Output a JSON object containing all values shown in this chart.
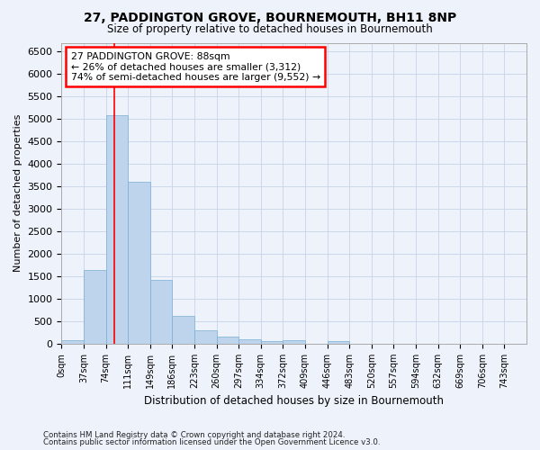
{
  "title_line1": "27, PADDINGTON GROVE, BOURNEMOUTH, BH11 8NP",
  "title_line2": "Size of property relative to detached houses in Bournemouth",
  "xlabel": "Distribution of detached houses by size in Bournemouth",
  "ylabel": "Number of detached properties",
  "footnote1": "Contains HM Land Registry data © Crown copyright and database right 2024.",
  "footnote2": "Contains public sector information licensed under the Open Government Licence v3.0.",
  "bar_labels": [
    "0sqm",
    "37sqm",
    "74sqm",
    "111sqm",
    "149sqm",
    "186sqm",
    "223sqm",
    "260sqm",
    "297sqm",
    "334sqm",
    "372sqm",
    "409sqm",
    "446sqm",
    "483sqm",
    "520sqm",
    "557sqm",
    "594sqm",
    "632sqm",
    "669sqm",
    "706sqm",
    "743sqm"
  ],
  "bar_values": [
    70,
    1650,
    5080,
    3600,
    1420,
    620,
    305,
    155,
    90,
    55,
    70,
    0,
    65,
    0,
    0,
    0,
    0,
    0,
    0,
    0,
    0
  ],
  "bar_color": "#bed3ec",
  "bar_edge_color": "#7aafd4",
  "grid_color": "#c8d4e8",
  "background_color": "#eef2fb",
  "annotation_text": "27 PADDINGTON GROVE: 88sqm\n← 26% of detached houses are smaller (3,312)\n74% of semi-detached houses are larger (9,552) →",
  "annotation_box_color": "white",
  "annotation_box_edge": "red",
  "vline_x": 2,
  "vline_color": "red",
  "ylim": [
    0,
    6700
  ],
  "yticks": [
    0,
    500,
    1000,
    1500,
    2000,
    2500,
    3000,
    3500,
    4000,
    4500,
    5000,
    5500,
    6000,
    6500
  ],
  "n_bins": 21,
  "bin_width": 1
}
